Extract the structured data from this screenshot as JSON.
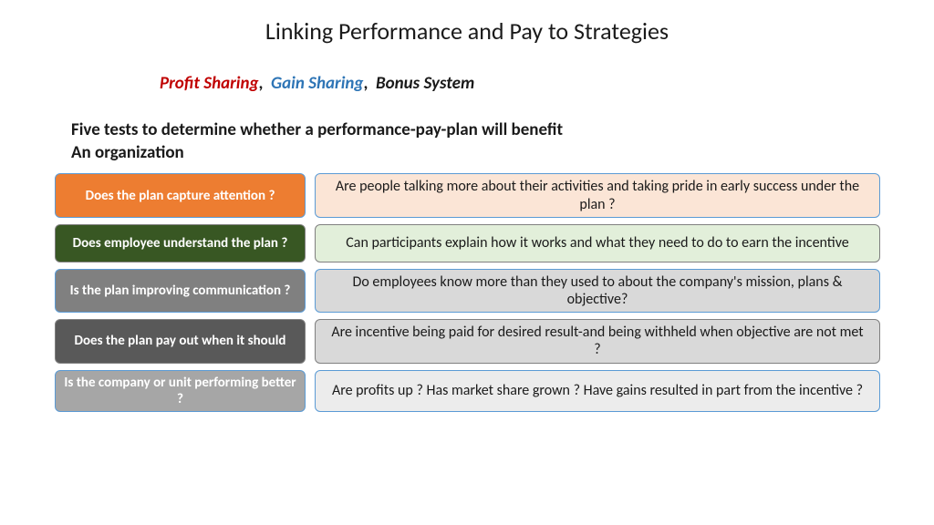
{
  "title": "Linking Performance and Pay to Strategies",
  "subtitle": {
    "profit_sharing": "Profit Sharing",
    "gain_sharing": "Gain Sharing",
    "bonus_system": "Bonus System",
    "comma": ","
  },
  "heading_line1": "Five tests to determine whether a performance-pay-plan will benefit",
  "heading_line2": "An organization",
  "colors": {
    "profit_sharing": "#c00000",
    "gain_sharing": "#2e75b6",
    "bonus_system": "#1a1a1a"
  },
  "rows": [
    {
      "left": "Does the plan capture attention ?",
      "right": "Are people talking more about their activities and taking pride in early success under the plan ?",
      "left_bg": "#ed7d31",
      "left_border": "#5b9bd5",
      "right_bg": "#fbe5d6",
      "right_border": "#5b9bd5"
    },
    {
      "left": "Does employee understand the plan ?",
      "right": "Can participants explain how it works and what they need to do to earn the incentive",
      "left_bg": "#385723",
      "left_border": "#808080",
      "right_bg": "#e2efda",
      "right_border": "#808080"
    },
    {
      "left": "Is the plan improving communication ?",
      "right": "Do employees know more than they used to about the company's mission, plans & objective?",
      "left_bg": "#808080",
      "left_border": "#5b9bd5",
      "right_bg": "#d9d9d9",
      "right_border": "#5b9bd5"
    },
    {
      "left": "Does the plan pay out when it should",
      "right": "Are incentive being paid for desired result-and being withheld when objective are not met ?",
      "left_bg": "#595959",
      "left_border": "#808080",
      "right_bg": "#d9d9d9",
      "right_border": "#808080"
    },
    {
      "left": "Is the company or unit performing better ?",
      "right": "Are profits up ? Has market share grown ? Have gains resulted in part from the incentive ?",
      "left_bg": "#a6a6a6",
      "left_border": "#5b9bd5",
      "right_bg": "#ececec",
      "right_border": "#5b9bd5"
    }
  ]
}
